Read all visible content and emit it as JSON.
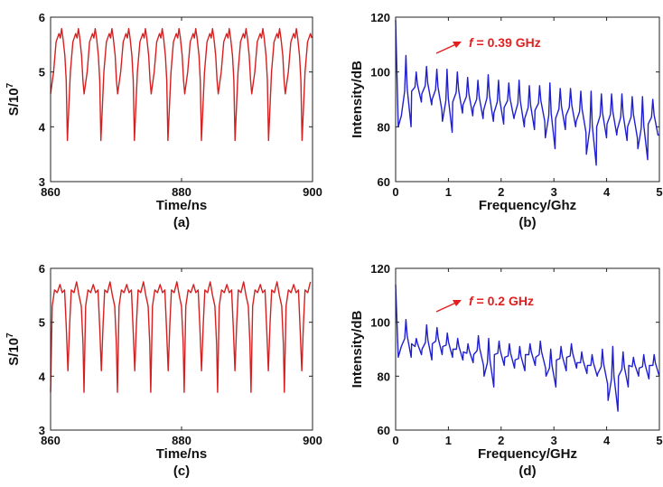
{
  "chart_data": [
    {
      "panel": "(a)",
      "type": "line",
      "xlabel": "Time/ns",
      "ylabel": "S/10^7",
      "ylabel_base": "S/10",
      "ylabel_exp": "7",
      "xlim": [
        860,
        900
      ],
      "ylim": [
        3,
        6
      ],
      "xticks": [
        "860",
        "880",
        "900"
      ],
      "yticks": [
        "3",
        "4",
        "5",
        "6"
      ],
      "color": "#d42020",
      "period_ns": 2.56,
      "start_ns": 860.0,
      "shape_t": [
        0.0,
        0.18,
        0.33,
        0.5,
        0.58,
        0.66,
        0.74,
        0.85,
        0.93,
        1.0
      ],
      "shape_v": [
        3.75,
        5.0,
        5.55,
        5.7,
        5.62,
        5.79,
        5.62,
        5.3,
        4.85,
        3.75
      ],
      "alternate_min": [
        3.75,
        4.6
      ]
    },
    {
      "panel": "(b)",
      "type": "line",
      "xlabel": "Frequency/Ghz",
      "ylabel": "Intensity/dB",
      "xlim": [
        0,
        5
      ],
      "ylim": [
        60,
        120
      ],
      "xticks": [
        "0",
        "1",
        "2",
        "3",
        "4",
        "5"
      ],
      "yticks": [
        "60",
        "80",
        "100",
        "120"
      ],
      "color": "#1f1fd0",
      "annotation": {
        "prefix": "f",
        "text": " = 0.39 GHz",
        "color": "#e02020"
      },
      "peak_spacing_ghz": 0.195,
      "dc_peak": 119,
      "peaks": [
        106,
        100,
        102,
        101,
        101,
        100,
        98,
        97,
        99,
        97,
        96,
        97,
        95,
        95,
        96,
        94,
        94,
        93,
        93,
        92,
        92,
        92,
        91,
        91,
        90
      ],
      "floor": [
        80,
        89,
        88,
        86,
        78,
        85,
        84,
        83,
        82,
        81,
        83,
        80,
        79,
        82,
        72,
        79,
        80,
        78,
        66,
        76,
        77,
        75,
        76,
        68,
        77
      ]
    },
    {
      "panel": "(c)",
      "type": "line",
      "xlabel": "Time/ns",
      "ylabel": "S/10^7",
      "ylabel_base": "S/10",
      "ylabel_exp": "7",
      "xlim": [
        860,
        900
      ],
      "ylim": [
        3,
        6
      ],
      "xticks": [
        "860",
        "880",
        "900"
      ],
      "yticks": [
        "3",
        "4",
        "5",
        "6"
      ],
      "color": "#d42020",
      "period_ns": 5.1,
      "start_ns": 860.0,
      "shape_t": [
        0.0,
        0.05,
        0.12,
        0.2,
        0.28,
        0.35,
        0.42,
        0.47,
        0.52,
        0.57,
        0.62,
        0.7,
        0.78,
        0.85,
        0.92,
        0.97,
        1.0
      ],
      "shape_v": [
        3.7,
        5.3,
        5.6,
        5.55,
        5.7,
        5.55,
        5.6,
        4.9,
        4.1,
        4.95,
        5.6,
        5.55,
        5.75,
        5.5,
        5.3,
        4.6,
        3.7
      ]
    },
    {
      "panel": "(d)",
      "type": "line",
      "xlabel": "Frequency/GHz",
      "ylabel": "Intensity/dB",
      "xlim": [
        0,
        5
      ],
      "ylim": [
        60,
        120
      ],
      "xticks": [
        "0",
        "1",
        "2",
        "3",
        "4",
        "5"
      ],
      "yticks": [
        "60",
        "80",
        "100",
        "120"
      ],
      "color": "#1f1fd0",
      "annotation": {
        "prefix": "f",
        "text": " = 0.2 GHz",
        "color": "#e02020"
      },
      "peak_spacing_ghz": 0.196,
      "dc_peak": 114,
      "peaks": [
        101,
        94,
        99,
        98,
        96,
        94,
        92,
        95,
        94,
        93,
        92,
        91,
        92,
        93,
        90,
        91,
        92,
        89,
        88,
        90,
        91,
        89,
        87,
        88,
        88
      ],
      "floor": [
        87,
        88,
        86,
        88,
        87,
        86,
        85,
        84,
        76,
        84,
        83,
        82,
        84,
        83,
        76,
        82,
        83,
        81,
        80,
        77,
        67,
        76,
        80,
        79,
        80
      ]
    }
  ]
}
